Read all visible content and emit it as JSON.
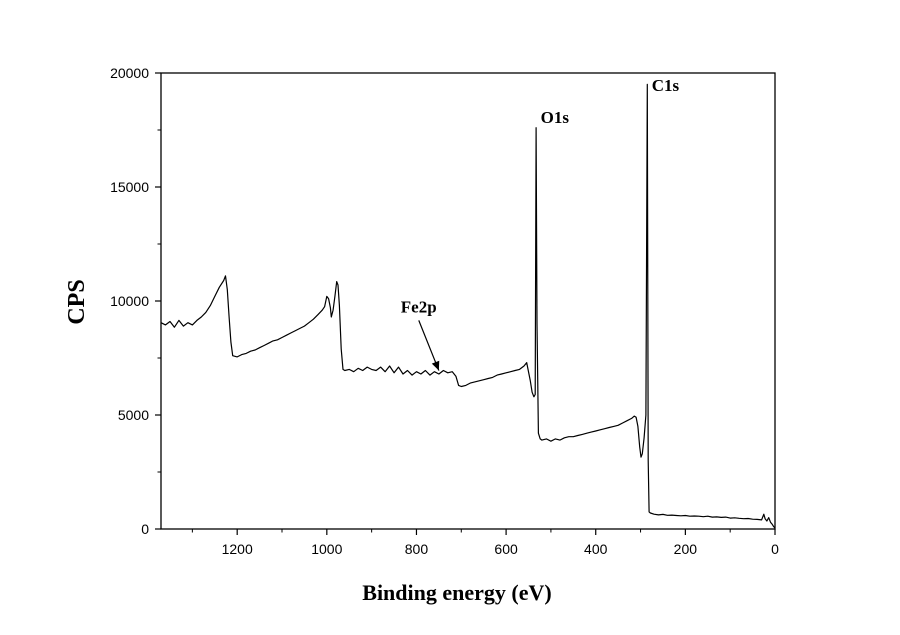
{
  "chart_data": {
    "type": "line",
    "title": "",
    "xlabel": "Binding energy (eV)",
    "ylabel": "CPS",
    "x_reversed": true,
    "xlim": [
      1370,
      0
    ],
    "ylim": [
      0,
      20000
    ],
    "x_ticks": [
      1200,
      1000,
      800,
      600,
      400,
      200,
      0
    ],
    "y_ticks": [
      0,
      5000,
      10000,
      15000,
      20000
    ],
    "x_tick_labels": [
      "1200",
      "1000",
      "800",
      "600",
      "400",
      "200",
      "0"
    ],
    "y_tick_labels": [
      "0",
      "5000",
      "10000",
      "15000",
      "20000"
    ],
    "grid": false,
    "color": "#000000",
    "series": [
      {
        "points": [
          [
            1370,
            9050
          ],
          [
            1360,
            8950
          ],
          [
            1350,
            9100
          ],
          [
            1340,
            8850
          ],
          [
            1330,
            9150
          ],
          [
            1320,
            8900
          ],
          [
            1310,
            9050
          ],
          [
            1300,
            8950
          ],
          [
            1290,
            9150
          ],
          [
            1280,
            9300
          ],
          [
            1270,
            9500
          ],
          [
            1260,
            9800
          ],
          [
            1250,
            10200
          ],
          [
            1240,
            10600
          ],
          [
            1230,
            10900
          ],
          [
            1226,
            11100
          ],
          [
            1222,
            10500
          ],
          [
            1218,
            9300
          ],
          [
            1214,
            8200
          ],
          [
            1210,
            7600
          ],
          [
            1200,
            7550
          ],
          [
            1190,
            7650
          ],
          [
            1180,
            7700
          ],
          [
            1170,
            7800
          ],
          [
            1160,
            7850
          ],
          [
            1150,
            7950
          ],
          [
            1140,
            8050
          ],
          [
            1130,
            8150
          ],
          [
            1120,
            8250
          ],
          [
            1110,
            8300
          ],
          [
            1100,
            8400
          ],
          [
            1090,
            8500
          ],
          [
            1080,
            8600
          ],
          [
            1070,
            8700
          ],
          [
            1060,
            8800
          ],
          [
            1050,
            8900
          ],
          [
            1040,
            9050
          ],
          [
            1030,
            9200
          ],
          [
            1020,
            9400
          ],
          [
            1010,
            9600
          ],
          [
            1005,
            9750
          ],
          [
            1000,
            10200
          ],
          [
            996,
            10100
          ],
          [
            992,
            9700
          ],
          [
            990,
            9300
          ],
          [
            986,
            9600
          ],
          [
            982,
            10200
          ],
          [
            978,
            10850
          ],
          [
            975,
            10700
          ],
          [
            972,
            9800
          ],
          [
            968,
            7900
          ],
          [
            964,
            7000
          ],
          [
            960,
            6950
          ],
          [
            950,
            7000
          ],
          [
            940,
            6900
          ],
          [
            930,
            7050
          ],
          [
            920,
            6950
          ],
          [
            910,
            7100
          ],
          [
            900,
            7000
          ],
          [
            890,
            6950
          ],
          [
            880,
            7100
          ],
          [
            870,
            6900
          ],
          [
            860,
            7150
          ],
          [
            850,
            6850
          ],
          [
            840,
            7100
          ],
          [
            830,
            6800
          ],
          [
            820,
            6950
          ],
          [
            810,
            6750
          ],
          [
            800,
            6900
          ],
          [
            790,
            6800
          ],
          [
            780,
            6950
          ],
          [
            770,
            6750
          ],
          [
            760,
            6900
          ],
          [
            750,
            6800
          ],
          [
            740,
            6950
          ],
          [
            730,
            6850
          ],
          [
            720,
            6900
          ],
          [
            712,
            6700
          ],
          [
            706,
            6300
          ],
          [
            700,
            6250
          ],
          [
            690,
            6300
          ],
          [
            680,
            6400
          ],
          [
            670,
            6450
          ],
          [
            660,
            6500
          ],
          [
            650,
            6550
          ],
          [
            640,
            6600
          ],
          [
            630,
            6650
          ],
          [
            620,
            6750
          ],
          [
            610,
            6800
          ],
          [
            600,
            6850
          ],
          [
            590,
            6900
          ],
          [
            580,
            6950
          ],
          [
            570,
            7000
          ],
          [
            560,
            7150
          ],
          [
            554,
            7300
          ],
          [
            550,
            6900
          ],
          [
            546,
            6500
          ],
          [
            542,
            6000
          ],
          [
            538,
            5800
          ],
          [
            535,
            5900
          ],
          [
            533,
            17600
          ],
          [
            531,
            9000
          ],
          [
            528,
            4200
          ],
          [
            524,
            3950
          ],
          [
            520,
            3900
          ],
          [
            510,
            3950
          ],
          [
            500,
            3850
          ],
          [
            490,
            3950
          ],
          [
            480,
            3900
          ],
          [
            470,
            4000
          ],
          [
            460,
            4050
          ],
          [
            450,
            4050
          ],
          [
            440,
            4100
          ],
          [
            430,
            4150
          ],
          [
            420,
            4200
          ],
          [
            410,
            4250
          ],
          [
            400,
            4300
          ],
          [
            390,
            4350
          ],
          [
            380,
            4400
          ],
          [
            370,
            4450
          ],
          [
            360,
            4500
          ],
          [
            350,
            4550
          ],
          [
            340,
            4650
          ],
          [
            330,
            4750
          ],
          [
            320,
            4850
          ],
          [
            314,
            4950
          ],
          [
            310,
            4900
          ],
          [
            306,
            4500
          ],
          [
            302,
            3600
          ],
          [
            299,
            3150
          ],
          [
            296,
            3300
          ],
          [
            292,
            4000
          ],
          [
            288,
            5000
          ],
          [
            285,
            19500
          ],
          [
            283,
            3000
          ],
          [
            281,
            750
          ],
          [
            278,
            700
          ],
          [
            270,
            650
          ],
          [
            260,
            620
          ],
          [
            250,
            640
          ],
          [
            240,
            600
          ],
          [
            230,
            610
          ],
          [
            220,
            590
          ],
          [
            210,
            580
          ],
          [
            200,
            590
          ],
          [
            190,
            560
          ],
          [
            180,
            570
          ],
          [
            170,
            560
          ],
          [
            160,
            540
          ],
          [
            150,
            560
          ],
          [
            140,
            520
          ],
          [
            130,
            530
          ],
          [
            120,
            510
          ],
          [
            110,
            520
          ],
          [
            100,
            480
          ],
          [
            90,
            490
          ],
          [
            80,
            470
          ],
          [
            70,
            450
          ],
          [
            60,
            460
          ],
          [
            50,
            430
          ],
          [
            40,
            420
          ],
          [
            30,
            400
          ],
          [
            25,
            650
          ],
          [
            22,
            450
          ],
          [
            18,
            350
          ],
          [
            14,
            500
          ],
          [
            10,
            300
          ],
          [
            6,
            200
          ],
          [
            3,
            100
          ],
          [
            0,
            50
          ]
        ]
      }
    ],
    "annotations": [
      {
        "text": "O1s",
        "x": 523,
        "y": 17800
      },
      {
        "text": "C1s",
        "x": 275,
        "y": 19200
      },
      {
        "text": "Fe2p",
        "x": 835,
        "y": 9500,
        "arrow_to": [
          750,
          6950
        ]
      }
    ]
  }
}
